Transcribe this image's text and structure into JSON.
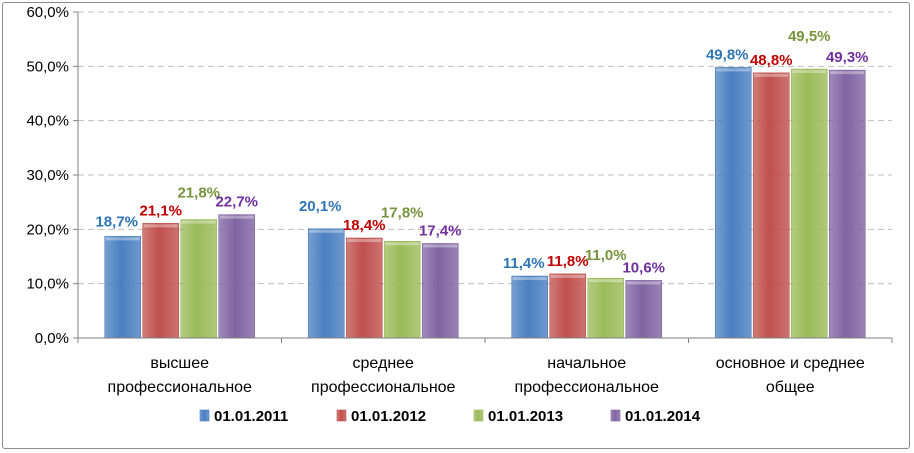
{
  "chart_data": {
    "type": "bar",
    "categories": [
      [
        "высшее",
        "профессиональное"
      ],
      [
        "среднее",
        "профессиональное"
      ],
      [
        "начальное",
        "профессиональное"
      ],
      [
        "основное и среднее",
        "общее"
      ]
    ],
    "series": [
      {
        "name": "01.01.2011",
        "color": "#4a7fc1",
        "values": [
          18.7,
          20.1,
          11.4,
          49.8
        ],
        "labels": [
          "18,7%",
          "20,1%",
          "11,4%",
          "49,8%"
        ]
      },
      {
        "name": "01.01.2012",
        "color": "#c0504d",
        "values": [
          21.1,
          18.4,
          11.8,
          48.8
        ],
        "labels": [
          "21,1%",
          "18,4%",
          "11,8%",
          "48,8%"
        ]
      },
      {
        "name": "01.01.2013",
        "color": "#9bbb59",
        "values": [
          21.8,
          17.8,
          11.0,
          49.5
        ],
        "labels": [
          "21,8%",
          "17,8%",
          "11,0%",
          "49,5%"
        ]
      },
      {
        "name": "01.01.2014",
        "color": "#8064a2",
        "values": [
          22.7,
          17.4,
          10.6,
          49.3
        ],
        "labels": [
          "22,7%",
          "17,4%",
          "10,6%",
          "49,3%"
        ]
      }
    ],
    "label_colors": [
      "#2e75b6",
      "#c00000",
      "#77933c",
      "#7030a0"
    ],
    "yticks": [
      "0,0%",
      "10,0%",
      "20,0%",
      "30,0%",
      "40,0%",
      "50,0%",
      "60,0%"
    ],
    "ylim": [
      0,
      60
    ],
    "grid": true,
    "legend_position": "bottom"
  }
}
